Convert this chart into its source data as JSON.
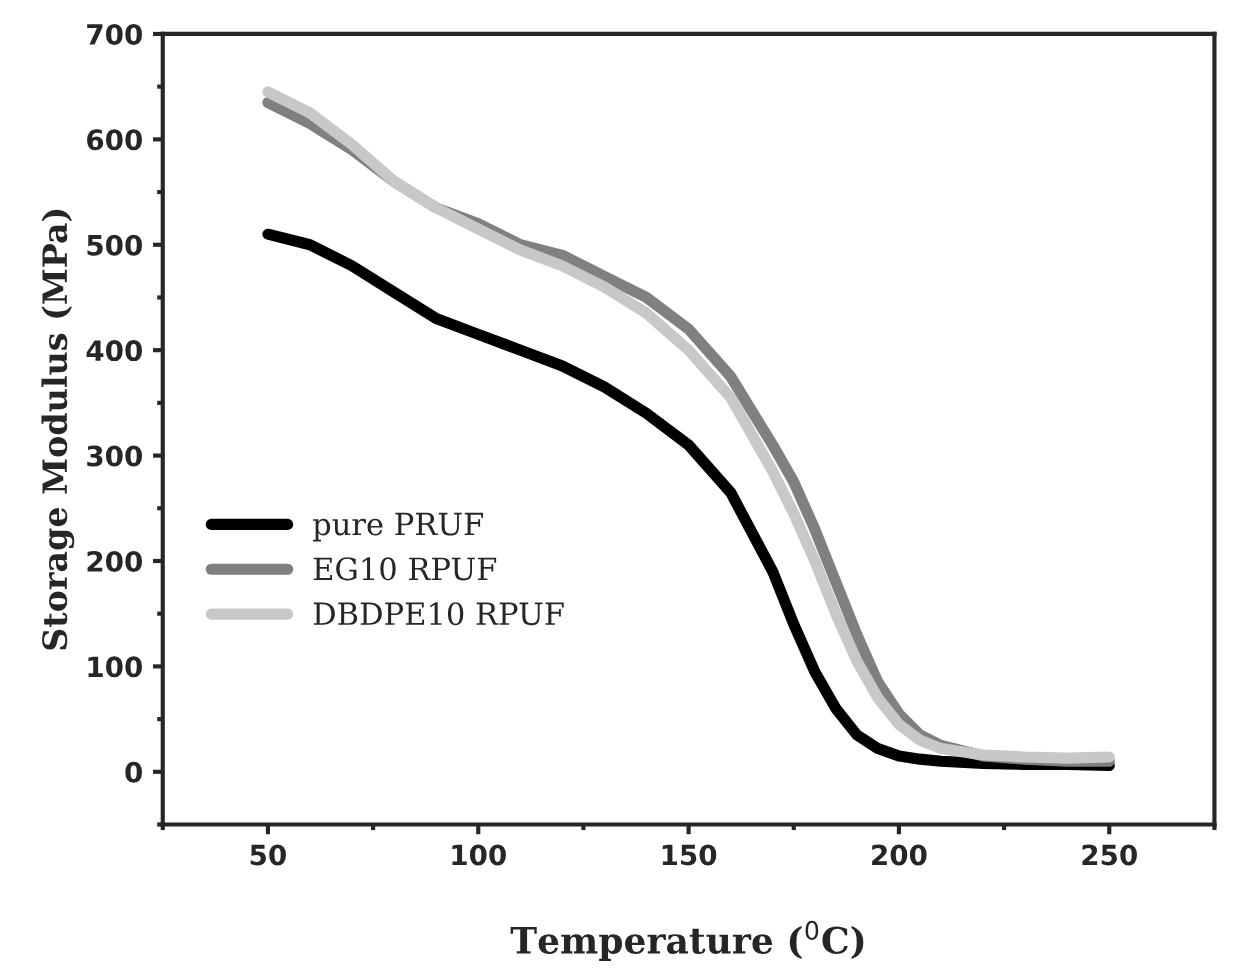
{
  "chart_data": {
    "type": "line",
    "xlabel": "Temperature ($^{0}$C)",
    "ylabel": "Storage Modulus (MPa)",
    "x": [
      50,
      60,
      70,
      80,
      90,
      100,
      110,
      120,
      130,
      140,
      150,
      160,
      170,
      175,
      180,
      185,
      190,
      195,
      200,
      205,
      210,
      220,
      230,
      240,
      250
    ],
    "series": [
      {
        "name": "pure PRUF",
        "color": "#000000",
        "values": [
          510,
          500,
          480,
          455,
          430,
          415,
          400,
          385,
          365,
          340,
          310,
          265,
          190,
          140,
          95,
          60,
          35,
          22,
          15,
          12,
          10,
          8,
          7,
          7,
          6
        ]
      },
      {
        "name": "EG10 RPUF",
        "color": "#808080",
        "values": [
          635,
          615,
          590,
          560,
          535,
          520,
          500,
          490,
          470,
          450,
          420,
          375,
          310,
          275,
          230,
          180,
          130,
          85,
          55,
          35,
          25,
          15,
          12,
          10,
          10
        ]
      },
      {
        "name": "DBDPE10 RPUF",
        "color": "#c8c8c8",
        "values": [
          645,
          625,
          595,
          560,
          535,
          515,
          495,
          480,
          460,
          435,
          400,
          355,
          285,
          245,
          200,
          150,
          105,
          70,
          45,
          30,
          22,
          16,
          14,
          13,
          14
        ]
      }
    ],
    "xlim": [
      25,
      275
    ],
    "xticks": [
      50,
      100,
      150,
      200,
      250
    ],
    "ylim": [
      -50,
      700
    ],
    "yticks": [
      0,
      100,
      200,
      300,
      400,
      500,
      600,
      700
    ],
    "grid": false,
    "legend": "left",
    "line_style": "solid"
  }
}
